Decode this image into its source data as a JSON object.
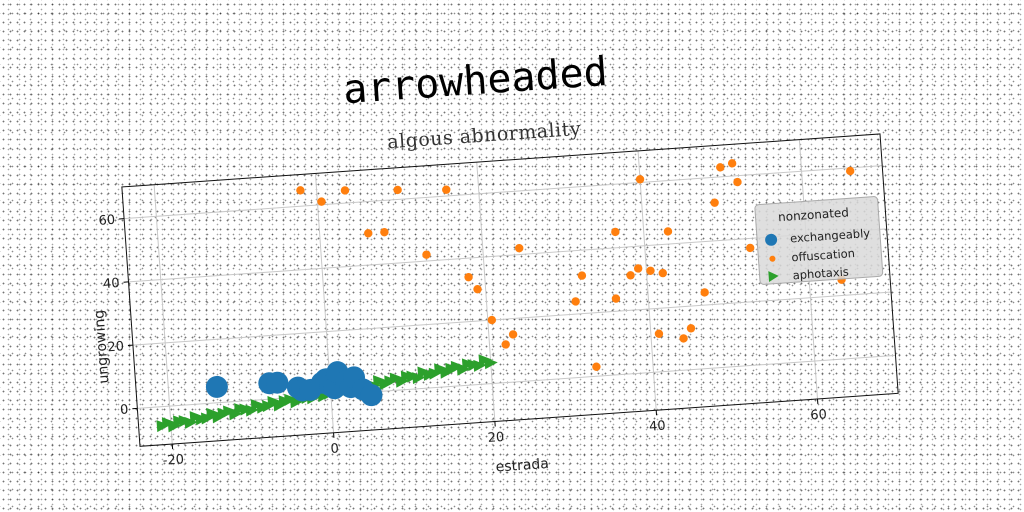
{
  "page_title": "arrowheaded",
  "chart_data": {
    "type": "scatter",
    "title": "algous abnormality",
    "xlabel": "estrada",
    "ylabel": "ungrowing",
    "xlim": [
      -24,
      70
    ],
    "ylim": [
      -12,
      70
    ],
    "xticks": [
      -20,
      0,
      20,
      40,
      60
    ],
    "yticks": [
      0,
      20,
      40,
      60
    ],
    "grid": true,
    "legend": {
      "title": "nonzonated",
      "placement": "right"
    },
    "series": [
      {
        "name": "exchangeably",
        "marker": "circle",
        "color": "#1f77b4",
        "x": [
          -14,
          -7.5,
          -6.5,
          -4,
          -3.5,
          -2.5,
          -1,
          -0.5,
          0,
          0.5,
          1,
          2,
          2.5,
          3,
          4,
          5
        ],
        "y": [
          5,
          5,
          5,
          3,
          2,
          2,
          4,
          5,
          3,
          2,
          7,
          4,
          2,
          5,
          1,
          -1
        ]
      },
      {
        "name": "offuscation",
        "marker": "circle-small",
        "color": "#ff7f0e",
        "x": [
          -2,
          0.5,
          3.5,
          6,
          8,
          10,
          13,
          16,
          18,
          19,
          20.5,
          22,
          23,
          24.5,
          31,
          32,
          33,
          36,
          36.5,
          38,
          39,
          40,
          40.5,
          41,
          42,
          43,
          44,
          45,
          47,
          49,
          50,
          51.5,
          52,
          53,
          64,
          66
        ],
        "y": [
          65,
          61,
          64,
          50,
          50,
          63,
          42,
          62,
          34,
          30,
          20,
          12,
          15,
          42,
          24,
          32,
          3,
          24,
          45,
          31,
          33,
          61,
          32,
          12,
          31,
          44,
          10,
          13,
          24,
          52,
          63,
          64,
          58,
          37,
          25,
          59
        ],
        "y_note": ""
      },
      {
        "name": "aphotaxis",
        "marker": "triangle-right",
        "color": "#2ca02c",
        "x_range": [
          -21,
          20
        ],
        "y_range": [
          -6,
          7
        ],
        "count": 60
      }
    ]
  }
}
